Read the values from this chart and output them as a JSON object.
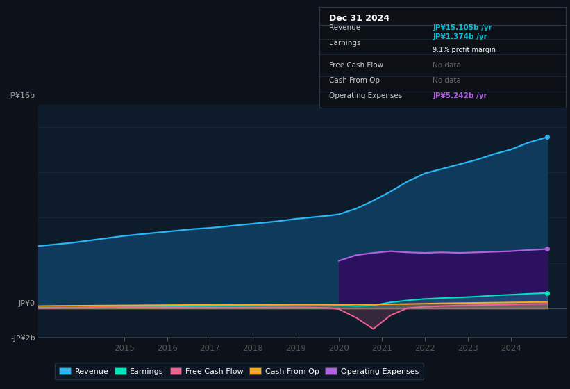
{
  "bg_color": "#0c111a",
  "plot_bg_color": "#0d1b2a",
  "grid_color": "#1a2e3e",
  "years_x": [
    2013.0,
    2013.4,
    2013.8,
    2014.2,
    2014.6,
    2015.0,
    2015.4,
    2015.8,
    2016.2,
    2016.6,
    2017.0,
    2017.4,
    2017.8,
    2018.2,
    2018.6,
    2019.0,
    2019.4,
    2019.8,
    2020.0,
    2020.4,
    2020.8,
    2021.2,
    2021.6,
    2022.0,
    2022.4,
    2022.8,
    2023.2,
    2023.6,
    2024.0,
    2024.4,
    2024.85
  ],
  "revenue": [
    5.5,
    5.65,
    5.8,
    6.0,
    6.2,
    6.4,
    6.55,
    6.7,
    6.85,
    7.0,
    7.1,
    7.25,
    7.4,
    7.55,
    7.7,
    7.9,
    8.05,
    8.2,
    8.3,
    8.8,
    9.5,
    10.3,
    11.2,
    11.9,
    12.3,
    12.7,
    13.1,
    13.6,
    14.0,
    14.6,
    15.1
  ],
  "earnings": [
    0.08,
    0.09,
    0.1,
    0.12,
    0.14,
    0.16,
    0.17,
    0.18,
    0.2,
    0.22,
    0.23,
    0.25,
    0.27,
    0.29,
    0.31,
    0.33,
    0.33,
    0.32,
    0.3,
    0.22,
    0.28,
    0.55,
    0.72,
    0.85,
    0.92,
    0.98,
    1.05,
    1.15,
    1.22,
    1.3,
    1.374
  ],
  "free_cash_flow": [
    0.04,
    0.05,
    0.06,
    0.07,
    0.08,
    0.09,
    0.09,
    0.09,
    0.09,
    0.09,
    0.09,
    0.09,
    0.1,
    0.1,
    0.1,
    0.1,
    0.08,
    0.05,
    -0.05,
    -0.8,
    -1.8,
    -0.6,
    0.05,
    0.15,
    0.22,
    0.27,
    0.3,
    0.33,
    0.36,
    0.39,
    0.42
  ],
  "cash_from_op": [
    0.22,
    0.24,
    0.25,
    0.26,
    0.27,
    0.28,
    0.29,
    0.3,
    0.31,
    0.32,
    0.32,
    0.33,
    0.34,
    0.35,
    0.36,
    0.37,
    0.37,
    0.37,
    0.36,
    0.36,
    0.36,
    0.38,
    0.4,
    0.43,
    0.46,
    0.48,
    0.5,
    0.52,
    0.54,
    0.56,
    0.58
  ],
  "op_expenses_x": [
    2020.0,
    2020.4,
    2020.8,
    2021.2,
    2021.6,
    2022.0,
    2022.4,
    2022.8,
    2023.2,
    2023.6,
    2024.0,
    2024.4,
    2024.85
  ],
  "op_expenses": [
    4.2,
    4.7,
    4.9,
    5.05,
    4.95,
    4.9,
    4.95,
    4.9,
    4.95,
    5.0,
    5.05,
    5.15,
    5.242
  ],
  "revenue_color": "#29b6f6",
  "earnings_color": "#00e5c0",
  "free_cash_flow_color": "#f06292",
  "cash_from_op_color": "#ffa726",
  "op_expenses_color": "#b060e0",
  "revenue_fill": "#0e3a5c",
  "op_expenses_fill": "#2d1060",
  "ylim_min": -2.5,
  "ylim_max": 18.0,
  "xlim_min": 2013.0,
  "xlim_max": 2025.3,
  "xticks": [
    2015,
    2016,
    2017,
    2018,
    2019,
    2020,
    2021,
    2022,
    2023,
    2024
  ],
  "legend_labels": [
    "Revenue",
    "Earnings",
    "Free Cash Flow",
    "Cash From Op",
    "Operating Expenses"
  ],
  "legend_colors": [
    "#29b6f6",
    "#00e5c0",
    "#f06292",
    "#ffa726",
    "#b060e0"
  ],
  "info_box_title": "Dec 31 2024",
  "info_rows": [
    {
      "label": "Revenue",
      "value": "JP¥15.105b /yr",
      "value_color": "#00bcd4",
      "sub": null
    },
    {
      "label": "Earnings",
      "value": "JP¥1.374b /yr",
      "value_color": "#00bcd4",
      "sub": "9.1% profit margin"
    },
    {
      "label": "Free Cash Flow",
      "value": "No data",
      "value_color": "#666666",
      "sub": null
    },
    {
      "label": "Cash From Op",
      "value": "No data",
      "value_color": "#666666",
      "sub": null
    },
    {
      "label": "Operating Expenses",
      "value": "JP¥5.242b /yr",
      "value_color": "#b060e0",
      "sub": null
    }
  ]
}
